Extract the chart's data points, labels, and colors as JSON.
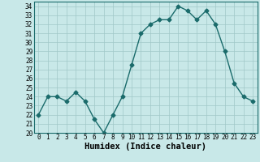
{
  "x": [
    0,
    1,
    2,
    3,
    4,
    5,
    6,
    7,
    8,
    9,
    10,
    11,
    12,
    13,
    14,
    15,
    16,
    17,
    18,
    19,
    20,
    21,
    22,
    23
  ],
  "y": [
    22,
    24,
    24,
    23.5,
    24.5,
    23.5,
    21.5,
    20,
    22,
    24,
    27.5,
    31,
    32,
    32.5,
    32.5,
    34,
    33.5,
    32.5,
    33.5,
    32,
    29,
    25.5,
    24,
    23.5
  ],
  "xlabel": "Humidex (Indice chaleur)",
  "ylim": [
    20,
    34.5
  ],
  "yticks": [
    20,
    21,
    22,
    23,
    24,
    25,
    26,
    27,
    28,
    29,
    30,
    31,
    32,
    33,
    34
  ],
  "xticks": [
    0,
    1,
    2,
    3,
    4,
    5,
    6,
    7,
    8,
    9,
    10,
    11,
    12,
    13,
    14,
    15,
    16,
    17,
    18,
    19,
    20,
    21,
    22,
    23
  ],
  "line_color": "#1a6b6b",
  "marker": "D",
  "marker_size": 2.5,
  "bg_color": "#c8e8e8",
  "grid_color": "#a0c8c8",
  "tick_fontsize": 5.5,
  "xlabel_fontsize": 7.5,
  "xlabel_fontweight": "bold"
}
